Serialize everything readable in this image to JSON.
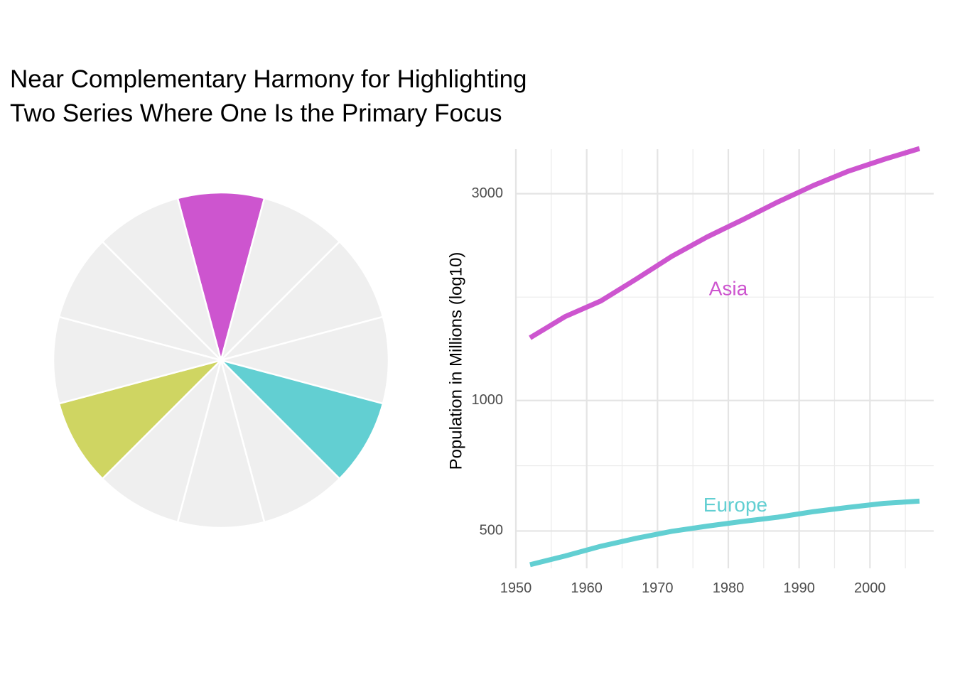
{
  "title_lines": [
    "Near Complementary Harmony for Highlighting",
    "Two Series Where One Is the Primary Focus"
  ],
  "chart_data": [
    {
      "type": "pie",
      "description_slices": 12,
      "slice_values": [
        1,
        1,
        1,
        1,
        1,
        1,
        1,
        1,
        1,
        1,
        1,
        1
      ],
      "base_color": "#efefef",
      "border_color": "#ffffff",
      "highlighted_slices": [
        {
          "index": 0,
          "color": "#cd55cf"
        },
        {
          "index": 4,
          "color": "#62cfd2"
        },
        {
          "index": 8,
          "color": "#cfd562"
        }
      ]
    },
    {
      "type": "line",
      "ylabel": "Population in Millions (log10)",
      "xlabel": "",
      "y_scale": "log10",
      "xlim": [
        1950,
        2009
      ],
      "ylim": [
        410,
        3800
      ],
      "x_ticks": [
        1950,
        1960,
        1970,
        1980,
        1990,
        2000
      ],
      "y_ticks": [
        500,
        1000,
        3000
      ],
      "grid": true,
      "x": [
        1952,
        1957,
        1962,
        1967,
        1972,
        1977,
        1982,
        1987,
        1992,
        1997,
        2002,
        2007
      ],
      "series": [
        {
          "name": "Asia",
          "color": "#cd55cf",
          "values": [
            1395,
            1563,
            1697,
            1906,
            2150,
            2384,
            2611,
            2871,
            3133,
            3383,
            3601,
            3812
          ],
          "label_x": 1980,
          "label_y": 1800
        },
        {
          "name": "Europe",
          "color": "#62cfd2",
          "values": [
            418,
            438,
            461,
            481,
            499,
            513,
            526,
            538,
            554,
            567,
            579,
            586
          ],
          "label_x": 1981,
          "label_y": 570
        }
      ]
    }
  ]
}
